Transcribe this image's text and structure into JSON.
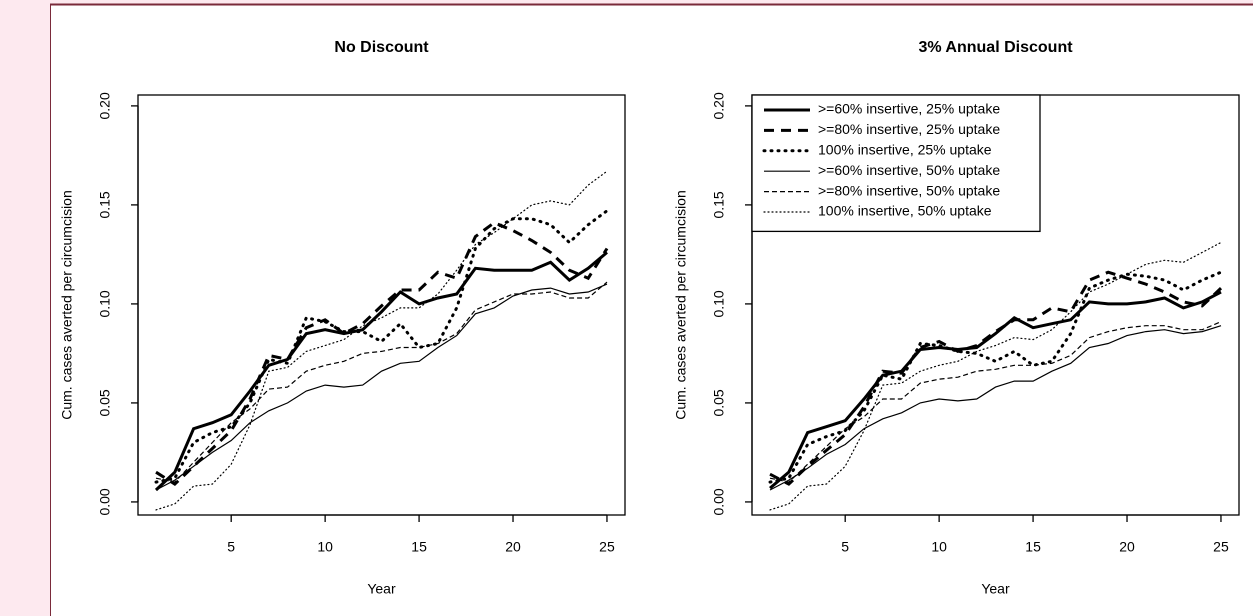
{
  "chart_data": [
    {
      "type": "line",
      "title": "No Discount",
      "xlabel": "Year",
      "ylabel": "Cum. cases averted per circumcision",
      "x": [
        1,
        2,
        3,
        4,
        5,
        6,
        7,
        8,
        9,
        10,
        11,
        12,
        13,
        14,
        15,
        16,
        17,
        18,
        19,
        20,
        21,
        22,
        23,
        24,
        25
      ],
      "xlim": [
        0.04,
        25.96
      ],
      "xticks": [
        5,
        10,
        15,
        20,
        25
      ],
      "ylim": [
        -0.0066,
        0.2055
      ],
      "yticks": [
        {
          "value": 0,
          "label": "0.00"
        },
        {
          "value": 0.05,
          "label": "0.05"
        },
        {
          "value": 0.1,
          "label": "0.10"
        },
        {
          "value": 0.15,
          "label": "0.15"
        },
        {
          "value": 0.2,
          "label": "0.20"
        }
      ],
      "series": [
        {
          "color": "#000000",
          "dash": "solid",
          "weight": "bold",
          "values": [
            0.006,
            0.015,
            0.037,
            0.04,
            0.044,
            0.056,
            0.069,
            0.072,
            0.085,
            0.087,
            0.085,
            0.087,
            0.096,
            0.106,
            0.1,
            0.103,
            0.105,
            0.118,
            0.117,
            0.117,
            0.117,
            0.121,
            0.112,
            0.118,
            0.126
          ]
        },
        {
          "color": "#000000",
          "dash": "dashed",
          "weight": "bold",
          "values": [
            0.015,
            0.009,
            0.018,
            0.027,
            0.036,
            0.052,
            0.074,
            0.072,
            0.088,
            0.092,
            0.085,
            0.09,
            0.099,
            0.107,
            0.107,
            0.116,
            0.113,
            0.134,
            0.141,
            0.137,
            0.132,
            0.126,
            0.117,
            0.113,
            0.128
          ]
        },
        {
          "color": "#000000",
          "dash": "dotted",
          "weight": "bold",
          "values": [
            0.01,
            0.012,
            0.03,
            0.035,
            0.038,
            0.05,
            0.072,
            0.07,
            0.093,
            0.091,
            0.086,
            0.086,
            0.081,
            0.09,
            0.078,
            0.08,
            0.098,
            0.128,
            0.138,
            0.143,
            0.143,
            0.14,
            0.131,
            0.14,
            0.147
          ]
        },
        {
          "color": "#000000",
          "dash": "solid",
          "weight": "normal",
          "values": [
            0.006,
            0.011,
            0.018,
            0.025,
            0.031,
            0.04,
            0.046,
            0.05,
            0.056,
            0.059,
            0.058,
            0.059,
            0.066,
            0.07,
            0.071,
            0.078,
            0.084,
            0.095,
            0.098,
            0.104,
            0.107,
            0.108,
            0.105,
            0.106,
            0.11
          ]
        },
        {
          "color": "#000000",
          "dash": "dashed",
          "weight": "normal",
          "values": [
            0.012,
            0.01,
            0.02,
            0.03,
            0.04,
            0.047,
            0.057,
            0.058,
            0.066,
            0.069,
            0.071,
            0.075,
            0.076,
            0.078,
            0.078,
            0.08,
            0.085,
            0.097,
            0.101,
            0.105,
            0.105,
            0.106,
            0.103,
            0.103,
            0.111
          ]
        },
        {
          "color": "#000000",
          "dash": "dotted",
          "weight": "normal",
          "values": [
            -0.004,
            -0.001,
            0.008,
            0.009,
            0.019,
            0.039,
            0.066,
            0.068,
            0.076,
            0.079,
            0.082,
            0.089,
            0.093,
            0.098,
            0.098,
            0.105,
            0.117,
            0.13,
            0.136,
            0.143,
            0.15,
            0.152,
            0.15,
            0.16,
            0.167
          ]
        }
      ]
    },
    {
      "type": "line",
      "title": "3% Annual Discount",
      "xlabel": "Year",
      "ylabel": "Cum. cases averted per circumcision",
      "x": [
        1,
        2,
        3,
        4,
        5,
        6,
        7,
        8,
        9,
        10,
        11,
        12,
        13,
        14,
        15,
        16,
        17,
        18,
        19,
        20,
        21,
        22,
        23,
        24,
        25
      ],
      "xlim": [
        0.04,
        25.96
      ],
      "xticks": [
        5,
        10,
        15,
        20,
        25
      ],
      "ylim": [
        -0.0066,
        0.2055
      ],
      "yticks": [
        {
          "value": 0,
          "label": "0.00"
        },
        {
          "value": 0.05,
          "label": "0.05"
        },
        {
          "value": 0.1,
          "label": "0.10"
        },
        {
          "value": 0.15,
          "label": "0.15"
        },
        {
          "value": 0.2,
          "label": "0.20"
        }
      ],
      "legend": "top-left",
      "series": [
        {
          "name": ">=60% insertive, 25% uptake",
          "color": "#000000",
          "dash": "solid",
          "weight": "bold",
          "values": [
            0.007,
            0.015,
            0.035,
            0.038,
            0.041,
            0.052,
            0.064,
            0.066,
            0.077,
            0.078,
            0.077,
            0.078,
            0.085,
            0.093,
            0.088,
            0.09,
            0.092,
            0.101,
            0.1,
            0.1,
            0.101,
            0.103,
            0.098,
            0.101,
            0.106
          ]
        },
        {
          "name": ">=80% insertive, 25% uptake",
          "color": "#000000",
          "dash": "dashed",
          "weight": "bold",
          "values": [
            0.014,
            0.009,
            0.018,
            0.026,
            0.034,
            0.048,
            0.066,
            0.065,
            0.078,
            0.081,
            0.076,
            0.079,
            0.086,
            0.092,
            0.092,
            0.098,
            0.096,
            0.112,
            0.116,
            0.113,
            0.11,
            0.106,
            0.101,
            0.099,
            0.108
          ]
        },
        {
          "name": "100% insertive, 25% uptake",
          "color": "#000000",
          "dash": "dotted",
          "weight": "bold",
          "values": [
            0.01,
            0.012,
            0.029,
            0.033,
            0.036,
            0.046,
            0.064,
            0.062,
            0.08,
            0.079,
            0.076,
            0.075,
            0.071,
            0.076,
            0.069,
            0.071,
            0.085,
            0.108,
            0.112,
            0.115,
            0.114,
            0.112,
            0.107,
            0.112,
            0.116
          ]
        },
        {
          "name": ">=60% insertive, 50% uptake",
          "color": "#000000",
          "dash": "solid",
          "weight": "normal",
          "values": [
            0.006,
            0.011,
            0.017,
            0.024,
            0.029,
            0.037,
            0.042,
            0.045,
            0.05,
            0.052,
            0.051,
            0.052,
            0.058,
            0.061,
            0.061,
            0.066,
            0.07,
            0.078,
            0.08,
            0.084,
            0.086,
            0.087,
            0.085,
            0.086,
            0.089
          ]
        },
        {
          "name": ">=80% insertive, 50% uptake",
          "color": "#000000",
          "dash": "dashed",
          "weight": "normal",
          "values": [
            0.012,
            0.01,
            0.019,
            0.028,
            0.037,
            0.043,
            0.052,
            0.052,
            0.06,
            0.062,
            0.063,
            0.066,
            0.067,
            0.069,
            0.069,
            0.07,
            0.074,
            0.083,
            0.086,
            0.088,
            0.089,
            0.089,
            0.087,
            0.087,
            0.091
          ]
        },
        {
          "name": "100% insertive, 50% uptake",
          "color": "#000000",
          "dash": "dotted",
          "weight": "normal",
          "values": [
            -0.004,
            -0.001,
            0.008,
            0.009,
            0.018,
            0.036,
            0.059,
            0.06,
            0.066,
            0.069,
            0.071,
            0.076,
            0.079,
            0.083,
            0.082,
            0.087,
            0.096,
            0.106,
            0.11,
            0.115,
            0.12,
            0.122,
            0.121,
            0.126,
            0.131
          ]
        }
      ]
    }
  ]
}
